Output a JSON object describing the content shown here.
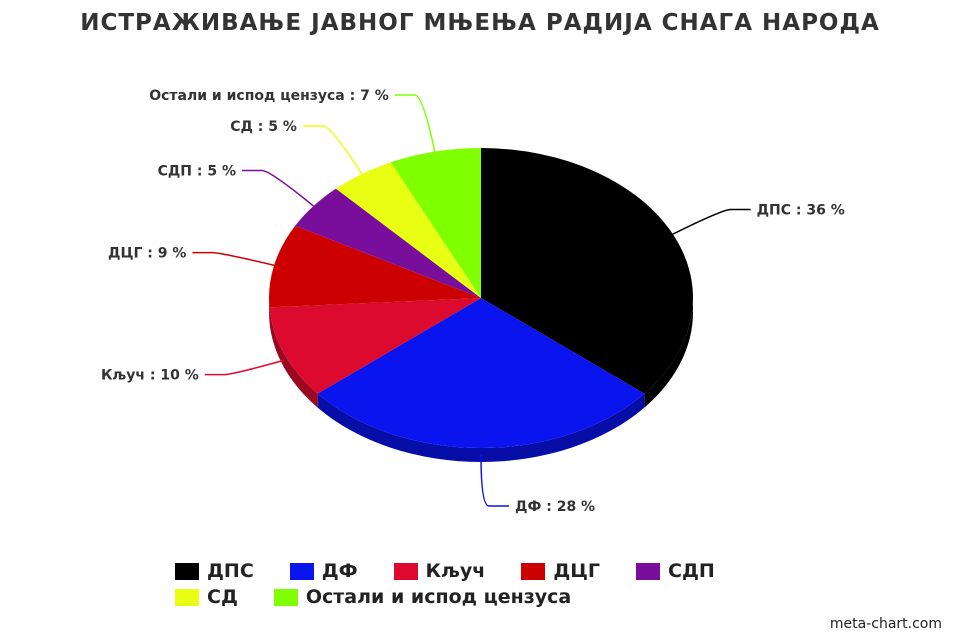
{
  "chart_data": {
    "type": "pie",
    "title": "ИСТРАЖИВАЊЕ ЈАВНОГ МЊЕЊА РАДИЈА СНАГА НАРОДА",
    "legend_placement": "bottom",
    "slices": [
      {
        "name": "ДПС",
        "value": 36,
        "label": "ДПС : 36 %",
        "color": "#000000"
      },
      {
        "name": "ДФ",
        "value": 28,
        "label": "ДФ : 28 %",
        "color": "#0A14EE"
      },
      {
        "name": "Кључ",
        "value": 10,
        "label": "Кључ : 10 %",
        "color": "#DC0A2E"
      },
      {
        "name": "ДЦГ",
        "value": 9,
        "label": "ДЦГ : 9 %",
        "color": "#CC0000"
      },
      {
        "name": "СДП",
        "value": 5,
        "label": "СДП : 5 %",
        "color": "#7A0E9C"
      },
      {
        "name": "СД",
        "value": 5,
        "label": "СД : 5 %",
        "color": "#E8FF14"
      },
      {
        "name": "Остали и испод цензуса",
        "value": 7,
        "label": "Остали и испод цензуса : 7 %",
        "color": "#80FF00"
      }
    ]
  },
  "watermark": "meta-chart.com"
}
